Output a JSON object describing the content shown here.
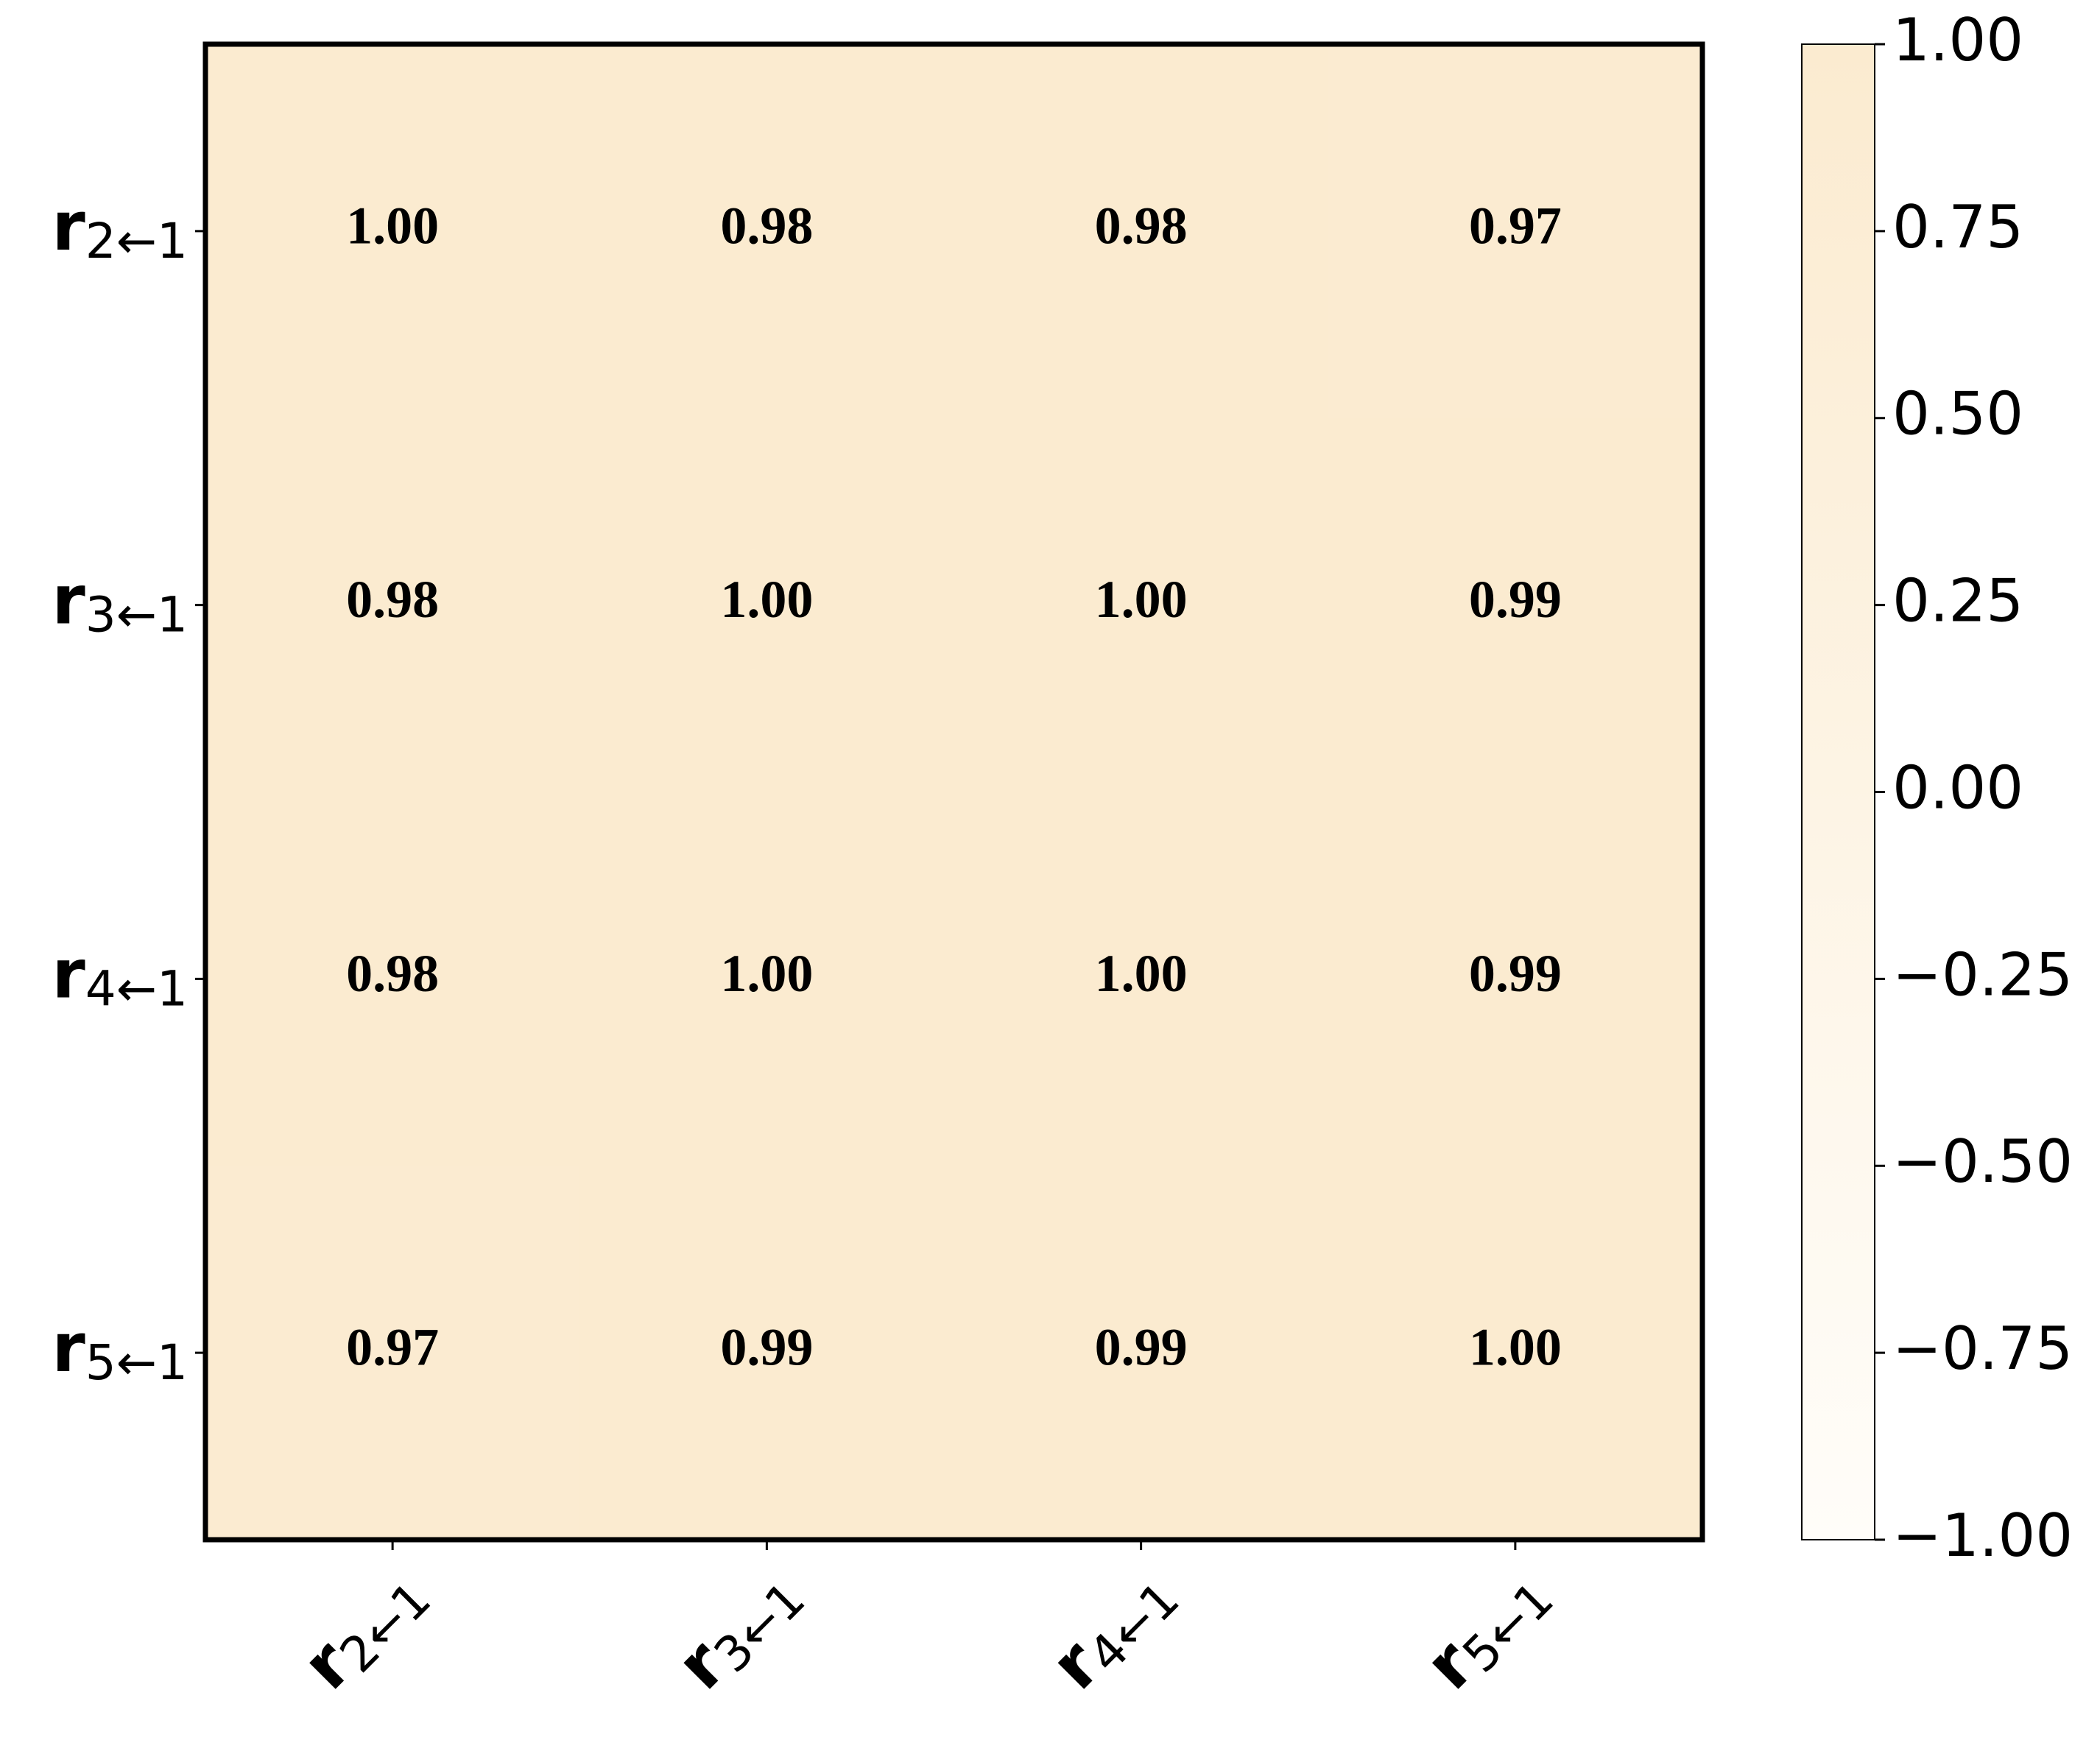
{
  "chart_data": {
    "type": "heatmap",
    "x_categories": [
      "r2←1",
      "r3←1",
      "r4←1",
      "r5←1"
    ],
    "y_categories": [
      "r2←1",
      "r3←1",
      "r4←1",
      "r5←1"
    ],
    "values": [
      [
        1.0,
        0.98,
        0.98,
        0.97
      ],
      [
        0.98,
        1.0,
        1.0,
        0.99
      ],
      [
        0.98,
        1.0,
        1.0,
        0.99
      ],
      [
        0.97,
        0.99,
        0.99,
        1.0
      ]
    ],
    "value_labels": [
      [
        "1.00",
        "0.98",
        "0.98",
        "0.97"
      ],
      [
        "0.98",
        "1.00",
        "1.00",
        "0.99"
      ],
      [
        "0.98",
        "1.00",
        "1.00",
        "0.99"
      ],
      [
        "0.97",
        "0.99",
        "0.99",
        "1.00"
      ]
    ],
    "cmap": [
      "#fffdf9",
      "#fbebd0"
    ],
    "zlim": [
      -1,
      1
    ],
    "zticks": [
      {
        "value": 1,
        "label": "1.00"
      },
      {
        "value": 0.75,
        "label": "0.75"
      },
      {
        "value": 0.5,
        "label": "0.50"
      },
      {
        "value": 0.25,
        "label": "0.25"
      },
      {
        "value": 0,
        "label": "0.00"
      },
      {
        "value": -0.25,
        "label": "−0.25"
      },
      {
        "value": -0.5,
        "label": "−0.50"
      },
      {
        "value": -0.75,
        "label": "−0.75"
      },
      {
        "value": -1,
        "label": "−1.00"
      }
    ]
  }
}
